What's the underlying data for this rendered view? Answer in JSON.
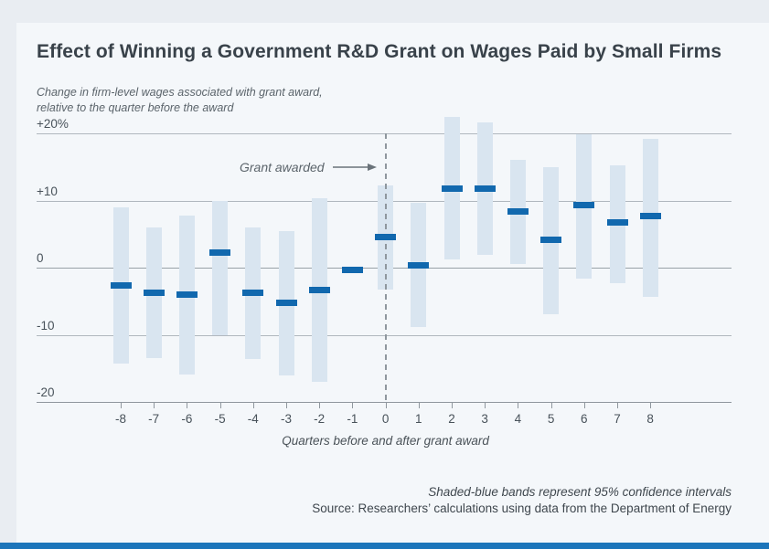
{
  "title": "Effect of Winning a Government R&D Grant on Wages Paid by Small Firms",
  "subtitle": "Change in firm-level wages associated with grant award, relative to the quarter before the award",
  "annotation": {
    "label": "Grant awarded"
  },
  "footnotes": {
    "note": "Shaded-blue bands represent 95% confidence intervals",
    "source": "Source: Researchers’ calculations using data from the Department of Energy"
  },
  "colors": {
    "background": "#e9edf2",
    "card": "#f4f7fa",
    "confidence_band": "#d9e5f0",
    "point_estimate": "#1168ae",
    "footer_bar": "#1c75ba",
    "title_text": "#39424a",
    "muted_text": "#5b646b",
    "gridline": "#b0b7be",
    "axis": "#8f979e"
  },
  "chart_data": {
    "type": "bar",
    "title": "Effect of Winning a Government R&D Grant on Wages Paid by Small Firms",
    "xlabel": "Quarters before and after grant award",
    "ylabel": "Change in firm-level wages associated with grant award, relative to the quarter before the award (%)",
    "x": [
      -8,
      -7,
      -6,
      -5,
      -4,
      -3,
      -2,
      -1,
      0,
      1,
      2,
      3,
      4,
      5,
      6,
      7,
      8
    ],
    "series": [
      {
        "name": "Point estimate",
        "values": [
          -2.6,
          -3.8,
          -4.0,
          2.3,
          -3.8,
          -5.2,
          -3.4,
          -0.3,
          4.5,
          0.4,
          11.8,
          11.8,
          8.3,
          4.2,
          9.3,
          6.7,
          7.7
        ]
      },
      {
        "name": "95% CI lower",
        "values": [
          -14.3,
          -13.5,
          -15.9,
          -10.1,
          -13.6,
          -16.1,
          -17.0,
          null,
          -3.3,
          -8.9,
          1.2,
          1.9,
          0.6,
          -6.9,
          -1.7,
          -2.3,
          -4.3
        ]
      },
      {
        "name": "95% CI upper",
        "values": [
          9.0,
          6.0,
          7.8,
          10.0,
          6.0,
          5.4,
          10.4,
          null,
          12.3,
          9.6,
          22.4,
          21.7,
          16.0,
          14.9,
          19.9,
          15.3,
          19.2
        ]
      }
    ],
    "ylim": [
      -20,
      22.5
    ],
    "yticks": [
      20,
      10,
      0,
      -10,
      -20
    ],
    "ytick_labels": [
      "+20%",
      "+10",
      "0",
      "-10",
      "-20"
    ],
    "grid": true,
    "legend_position": "none",
    "annotation_x": 0
  }
}
